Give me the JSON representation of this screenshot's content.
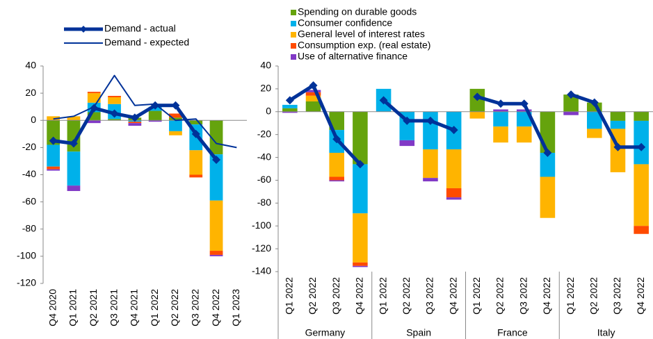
{
  "chart_data": [
    {
      "type": "bar",
      "categories": [
        "Q4 2020",
        "Q1 2021",
        "Q2 2021",
        "Q3 2021",
        "Q4 2021",
        "Q1 2022",
        "Q2 2022",
        "Q3 2022",
        "Q4 2022",
        "Q1 2023"
      ],
      "ylim": [
        -120,
        40
      ],
      "yticks": [
        -120,
        -100,
        -80,
        -60,
        -40,
        -20,
        0,
        20,
        40
      ],
      "series": [
        {
          "type": "bar",
          "color": "#65a30d",
          "values": [
            -18,
            -23,
            6,
            1,
            2,
            7,
            2,
            -3,
            -25,
            null
          ]
        },
        {
          "type": "bar",
          "color": "#00b1ea",
          "values": [
            -16,
            -25,
            7,
            11,
            -1,
            3,
            -8,
            -19,
            -34,
            null
          ]
        },
        {
          "type": "bar",
          "color": "#ffb400",
          "values": [
            3,
            3,
            7,
            5,
            null,
            null,
            -3,
            -18,
            -37,
            null
          ]
        },
        {
          "type": "bar",
          "color": "#ff4b00",
          "values": [
            -2,
            null,
            1,
            1,
            -1,
            null,
            3,
            -2,
            -3,
            null
          ]
        },
        {
          "type": "bar",
          "color": "#8139c6",
          "values": [
            -1,
            -4,
            -2,
            null,
            -2,
            -1,
            null,
            null,
            -1,
            null
          ]
        },
        {
          "type": "line",
          "name": "Demand - actual",
          "color": "#003299",
          "linewidth": 5,
          "marker": "diamond",
          "values": [
            -15,
            -17,
            9,
            5,
            2,
            11,
            11,
            -10,
            -29,
            null
          ]
        },
        {
          "type": "line",
          "name": "Demand - expected",
          "color": "#003299",
          "linewidth": 2,
          "values": [
            1,
            3,
            10,
            33,
            11,
            12,
            0,
            1,
            -17,
            -20
          ]
        }
      ]
    },
    {
      "type": "bar",
      "categories": [
        "Q1 2022",
        "Q2 2022",
        "Q3 2022",
        "Q4 2022",
        "Q1 2022",
        "Q2 2022",
        "Q3 2022",
        "Q4 2022",
        "Q1 2022",
        "Q2 2022",
        "Q3 2022",
        "Q4 2022",
        "Q1 2022",
        "Q2 2022",
        "Q3 2022",
        "Q4 2022"
      ],
      "groups": [
        "Germany",
        "Spain",
        "France",
        "Italy"
      ],
      "break_lines_between_groups": true,
      "ylim": [
        -140,
        40
      ],
      "yticks": [
        -140,
        -120,
        -100,
        -80,
        -60,
        -40,
        -20,
        0,
        20,
        40
      ],
      "series": [
        {
          "type": "bar",
          "name": "Spending on durable goods",
          "color": "#65a30d",
          "values": [
            3,
            9,
            -16,
            -46,
            null,
            null,
            null,
            null,
            20,
            null,
            null,
            -36,
            15,
            8,
            -8,
            -8
          ]
        },
        {
          "type": "bar",
          "name": "Consumer confidence",
          "color": "#00b1ea",
          "values": [
            3,
            null,
            -20,
            -43,
            20,
            -25,
            -33,
            -33,
            null,
            -13,
            -13,
            -21,
            null,
            -15,
            -7,
            -38
          ]
        },
        {
          "type": "bar",
          "name": "General level of interest rates",
          "color": "#ffb400",
          "values": [
            null,
            5,
            -21,
            -43,
            null,
            null,
            -25,
            -34,
            -6,
            -14,
            -14,
            -36,
            null,
            -8,
            -38,
            -54
          ]
        },
        {
          "type": "bar",
          "name": "Consumption exp. (real estate)",
          "color": "#ff4b00",
          "values": [
            null,
            3,
            -3,
            -3,
            null,
            null,
            null,
            -8,
            null,
            null,
            null,
            null,
            null,
            null,
            null,
            -7
          ]
        },
        {
          "type": "bar",
          "name": "Use of alternative finance",
          "color": "#8139c6",
          "values": [
            -1,
            2,
            -1,
            -1,
            null,
            -5,
            -3,
            -2,
            null,
            2,
            2,
            null,
            -3,
            null,
            null,
            null
          ]
        },
        {
          "type": "line",
          "color": "#003299",
          "linewidth": 5,
          "marker": "diamond",
          "values": [
            10,
            23,
            -24,
            -46,
            10,
            -8,
            -8,
            -16,
            13,
            7,
            7,
            -36,
            15,
            8,
            -31,
            -31
          ]
        }
      ]
    }
  ]
}
